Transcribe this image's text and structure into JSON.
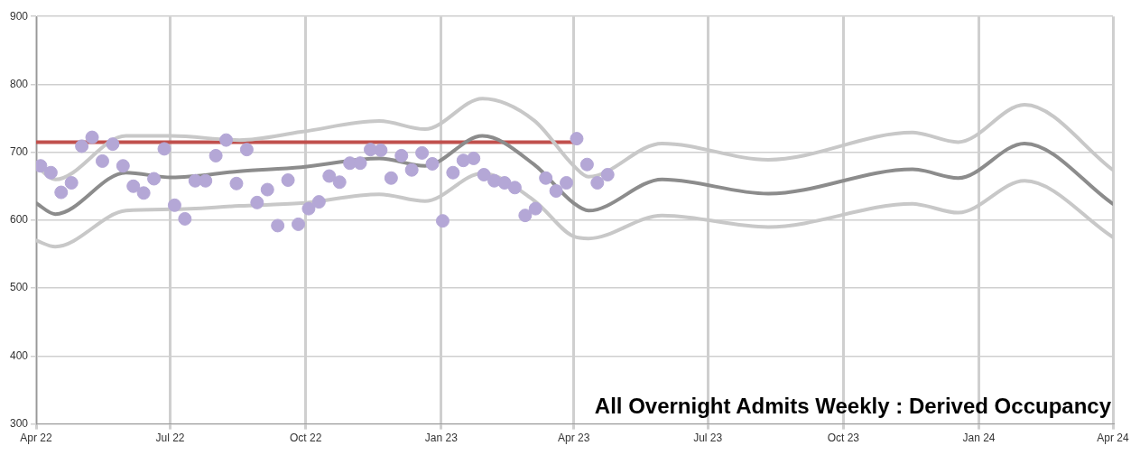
{
  "chart_data": {
    "type": "scatter",
    "title": "All Overnight Admits Weekly : Derived Occupancy",
    "xlim": [
      "2022-04-01",
      "2024-04-01"
    ],
    "xticks": [
      {
        "value": "2022-04-01",
        "label": "Apr 22"
      },
      {
        "value": "2022-07-01",
        "label": "Jul 22"
      },
      {
        "value": "2022-10-01",
        "label": "Oct 22"
      },
      {
        "value": "2023-01-01",
        "label": "Jan 23"
      },
      {
        "value": "2023-04-01",
        "label": "Apr 23"
      },
      {
        "value": "2023-07-01",
        "label": "Jul 23"
      },
      {
        "value": "2023-10-01",
        "label": "Oct 23"
      },
      {
        "value": "2024-01-01",
        "label": "Jan 24"
      },
      {
        "value": "2024-04-01",
        "label": "Apr 24"
      }
    ],
    "ylim": [
      300,
      900
    ],
    "yticks": [
      300,
      400,
      500,
      600,
      700,
      800,
      900
    ],
    "grid": true,
    "legend": false,
    "marker": "none",
    "line_style": "solid",
    "series": [
      {
        "type": "line",
        "color": "#c8c8c8",
        "x": [
          "2022-04-01",
          "2022-04-14",
          "2022-06-01",
          "2022-07-02",
          "2022-08-17",
          "2022-09-28",
          "2022-11-20",
          "2022-12-21",
          "2023-01-29",
          "2023-03-05",
          "2023-04-01",
          "2023-04-11",
          "2023-05-31",
          "2023-08-11",
          "2023-11-17",
          "2023-12-18",
          "2024-02-01",
          "2024-04-01"
        ],
        "values": [
          680,
          660,
          724,
          724,
          718,
          730,
          746,
          734,
          779,
          747,
          680,
          664,
          713,
          689,
          729,
          715,
          770,
          674
        ]
      },
      {
        "type": "line",
        "color": "#c8c8c8",
        "x": [
          "2022-04-01",
          "2022-04-14",
          "2022-06-01",
          "2022-07-02",
          "2022-08-17",
          "2022-09-28",
          "2022-11-20",
          "2022-12-21",
          "2023-01-29",
          "2023-03-05",
          "2023-04-01",
          "2023-04-11",
          "2023-05-31",
          "2023-08-11",
          "2023-11-17",
          "2023-12-18",
          "2024-02-01",
          "2024-04-01"
        ],
        "values": [
          570,
          561,
          614,
          616,
          621,
          625,
          638,
          628,
          669,
          629,
          576,
          573,
          607,
          590,
          624,
          611,
          658,
          575
        ]
      },
      {
        "type": "line",
        "color": "#8c8c8c",
        "x": [
          "2022-04-01",
          "2022-04-14",
          "2022-06-01",
          "2022-07-02",
          "2022-08-17",
          "2022-09-28",
          "2022-11-20",
          "2022-12-21",
          "2023-01-29",
          "2023-03-05",
          "2023-04-01",
          "2023-04-11",
          "2023-05-31",
          "2023-08-11",
          "2023-11-17",
          "2023-12-18",
          "2024-02-01",
          "2024-04-01"
        ],
        "values": [
          625,
          609,
          670,
          663,
          672,
          678,
          691,
          680,
          724,
          682,
          625,
          614,
          660,
          639,
          675,
          662,
          713,
          624
        ]
      },
      {
        "type": "line",
        "color": "#c0504d",
        "x": [
          "2022-04-01",
          "2023-04-01"
        ],
        "values": [
          715,
          715
        ]
      },
      {
        "marker": "circle",
        "color": "#b4a7d6",
        "x": [
          "2022-04-04",
          "2022-04-11",
          "2022-04-18",
          "2022-04-25",
          "2022-05-02",
          "2022-05-09",
          "2022-05-16",
          "2022-05-23",
          "2022-05-30",
          "2022-06-06",
          "2022-06-13",
          "2022-06-20",
          "2022-06-27",
          "2022-07-04",
          "2022-07-11",
          "2022-07-18",
          "2022-07-25",
          "2022-08-01",
          "2022-08-08",
          "2022-08-15",
          "2022-08-22",
          "2022-08-29",
          "2022-09-05",
          "2022-09-12",
          "2022-09-19",
          "2022-09-26",
          "2022-10-03",
          "2022-10-10",
          "2022-10-17",
          "2022-10-24",
          "2022-10-31",
          "2022-11-07",
          "2022-11-14",
          "2022-11-21",
          "2022-11-28",
          "2022-12-05",
          "2022-12-12",
          "2022-12-19",
          "2022-12-26",
          "2023-01-02",
          "2023-01-09",
          "2023-01-16",
          "2023-01-23",
          "2023-01-30",
          "2023-02-06",
          "2023-02-13",
          "2023-02-20",
          "2023-02-27",
          "2023-03-06",
          "2023-03-13",
          "2023-03-20",
          "2023-03-27",
          "2023-04-03",
          "2023-04-10",
          "2023-04-17",
          "2023-04-24"
        ],
        "values": [
          680,
          670,
          641,
          655,
          709,
          722,
          687,
          712,
          680,
          650,
          640,
          661,
          705,
          622,
          602,
          658,
          658,
          695,
          718,
          654,
          704,
          626,
          645,
          592,
          659,
          594,
          617,
          627,
          665,
          656,
          684,
          684,
          704,
          703,
          662,
          695,
          674,
          699,
          683,
          599,
          670,
          688,
          691,
          667,
          658,
          655,
          648,
          607,
          617,
          662,
          643,
          655,
          720,
          682,
          655,
          667
        ]
      }
    ]
  }
}
